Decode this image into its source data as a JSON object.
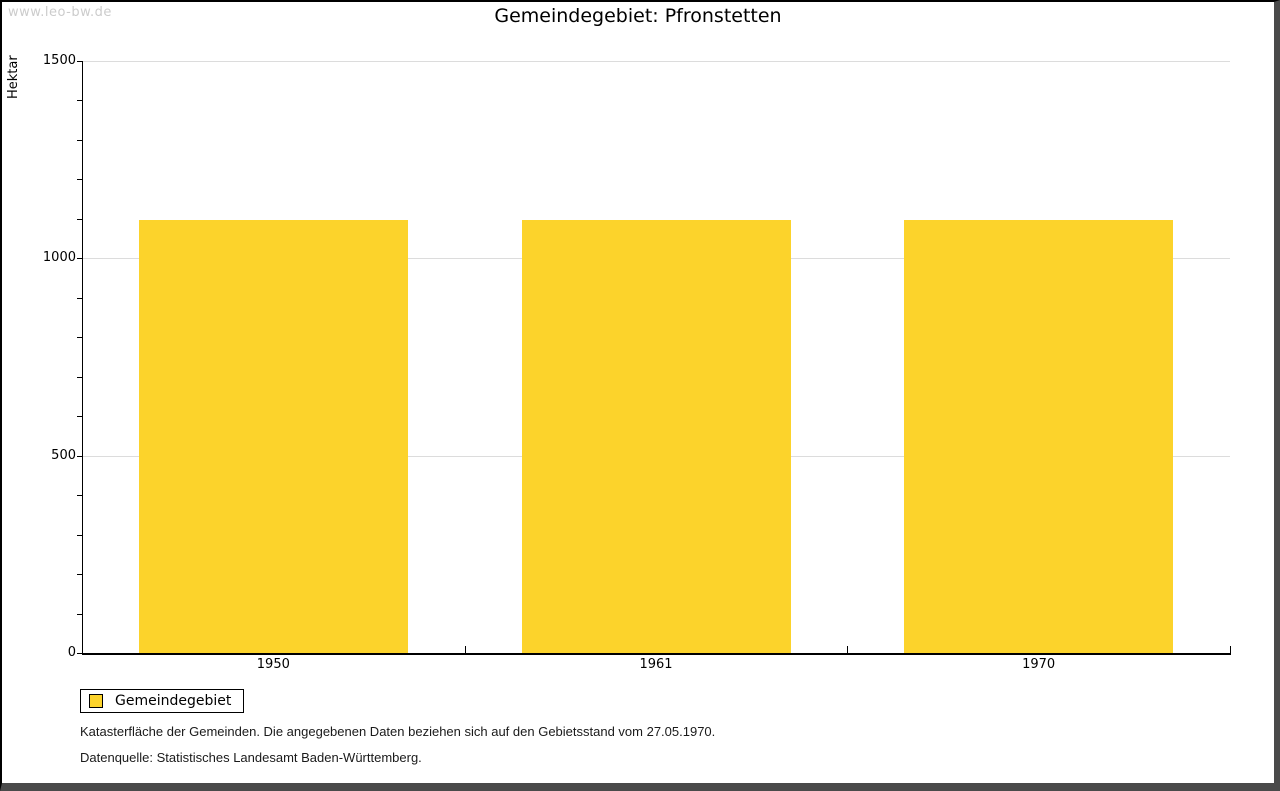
{
  "watermark": "www.leo-bw.de",
  "chart_data": {
    "type": "bar",
    "title": "Gemeindegebiet: Pfronstetten",
    "categories": [
      "1950",
      "1961",
      "1970"
    ],
    "series": [
      {
        "name": "Gemeindegebiet",
        "color": "#fcd32b",
        "values": [
          1098,
          1098,
          1098
        ]
      }
    ],
    "xlabel": "",
    "ylabel": "Hektar",
    "ylim": [
      0,
      1500
    ],
    "ytick_major": 500,
    "ytick_minor": 100,
    "ytick_labels": [
      "0",
      "500",
      "1000",
      "1500"
    ],
    "grid": "horizontal-major",
    "gridline_color": "#dcdcdc",
    "legend_position": "bottom-left"
  },
  "footnotes": [
    "Katasterfläche der Gemeinden. Die angegebenen Daten beziehen sich auf den Gebietsstand vom 27.05.1970.",
    "Datenquelle: Statistisches Landesamt Baden-Württemberg."
  ]
}
